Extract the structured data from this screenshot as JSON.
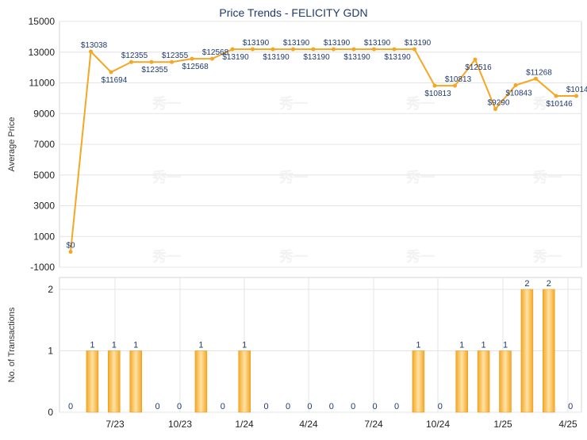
{
  "chart_data": [
    {
      "type": "line",
      "title": "Price Trends - FELICITY GDN",
      "ylabel": "Average Price",
      "ylim": [
        -1000,
        15000
      ],
      "yticks": [
        -1000,
        1000,
        3000,
        5000,
        7000,
        9000,
        11000,
        13000,
        15000
      ],
      "grid": true,
      "watermark": "秀一",
      "series": [
        {
          "color": "#F5A623",
          "values": [
            0,
            13038,
            11694,
            12355,
            12355,
            12355,
            12568,
            12568,
            13190,
            13190,
            13190,
            13190,
            13190,
            13190,
            13190,
            13190,
            13190,
            13190,
            10813,
            10813,
            12516,
            9290,
            10843,
            11268,
            10146,
            10146
          ],
          "labels": [
            "$0",
            "$13038",
            "$11694",
            "$12355",
            "$12355",
            "$12355",
            "$12568",
            "$12568",
            "$13190",
            "$13190",
            "$13190",
            "$13190",
            "$13190",
            "$13190",
            "$13190",
            "$13190",
            "$13190",
            "$13190",
            "$10813",
            "$10813",
            "$12516",
            "$9290",
            "$10843",
            "$11268",
            "$10146",
            "$10146"
          ]
        }
      ]
    },
    {
      "type": "bar",
      "ylabel": "No. of Transactions",
      "ylim": [
        0,
        2
      ],
      "yticks": [
        0,
        1,
        2
      ],
      "xticks": [
        "7/23",
        "10/23",
        "1/24",
        "4/24",
        "7/24",
        "10/24",
        "1/25",
        "4/25"
      ],
      "grid": true,
      "series": [
        {
          "color": "#F5A623",
          "values": [
            0,
            1,
            1,
            1,
            0,
            0,
            1,
            0,
            1,
            0,
            0,
            0,
            0,
            0,
            0,
            0,
            1,
            0,
            1,
            1,
            1,
            2,
            2,
            0
          ]
        }
      ]
    }
  ]
}
